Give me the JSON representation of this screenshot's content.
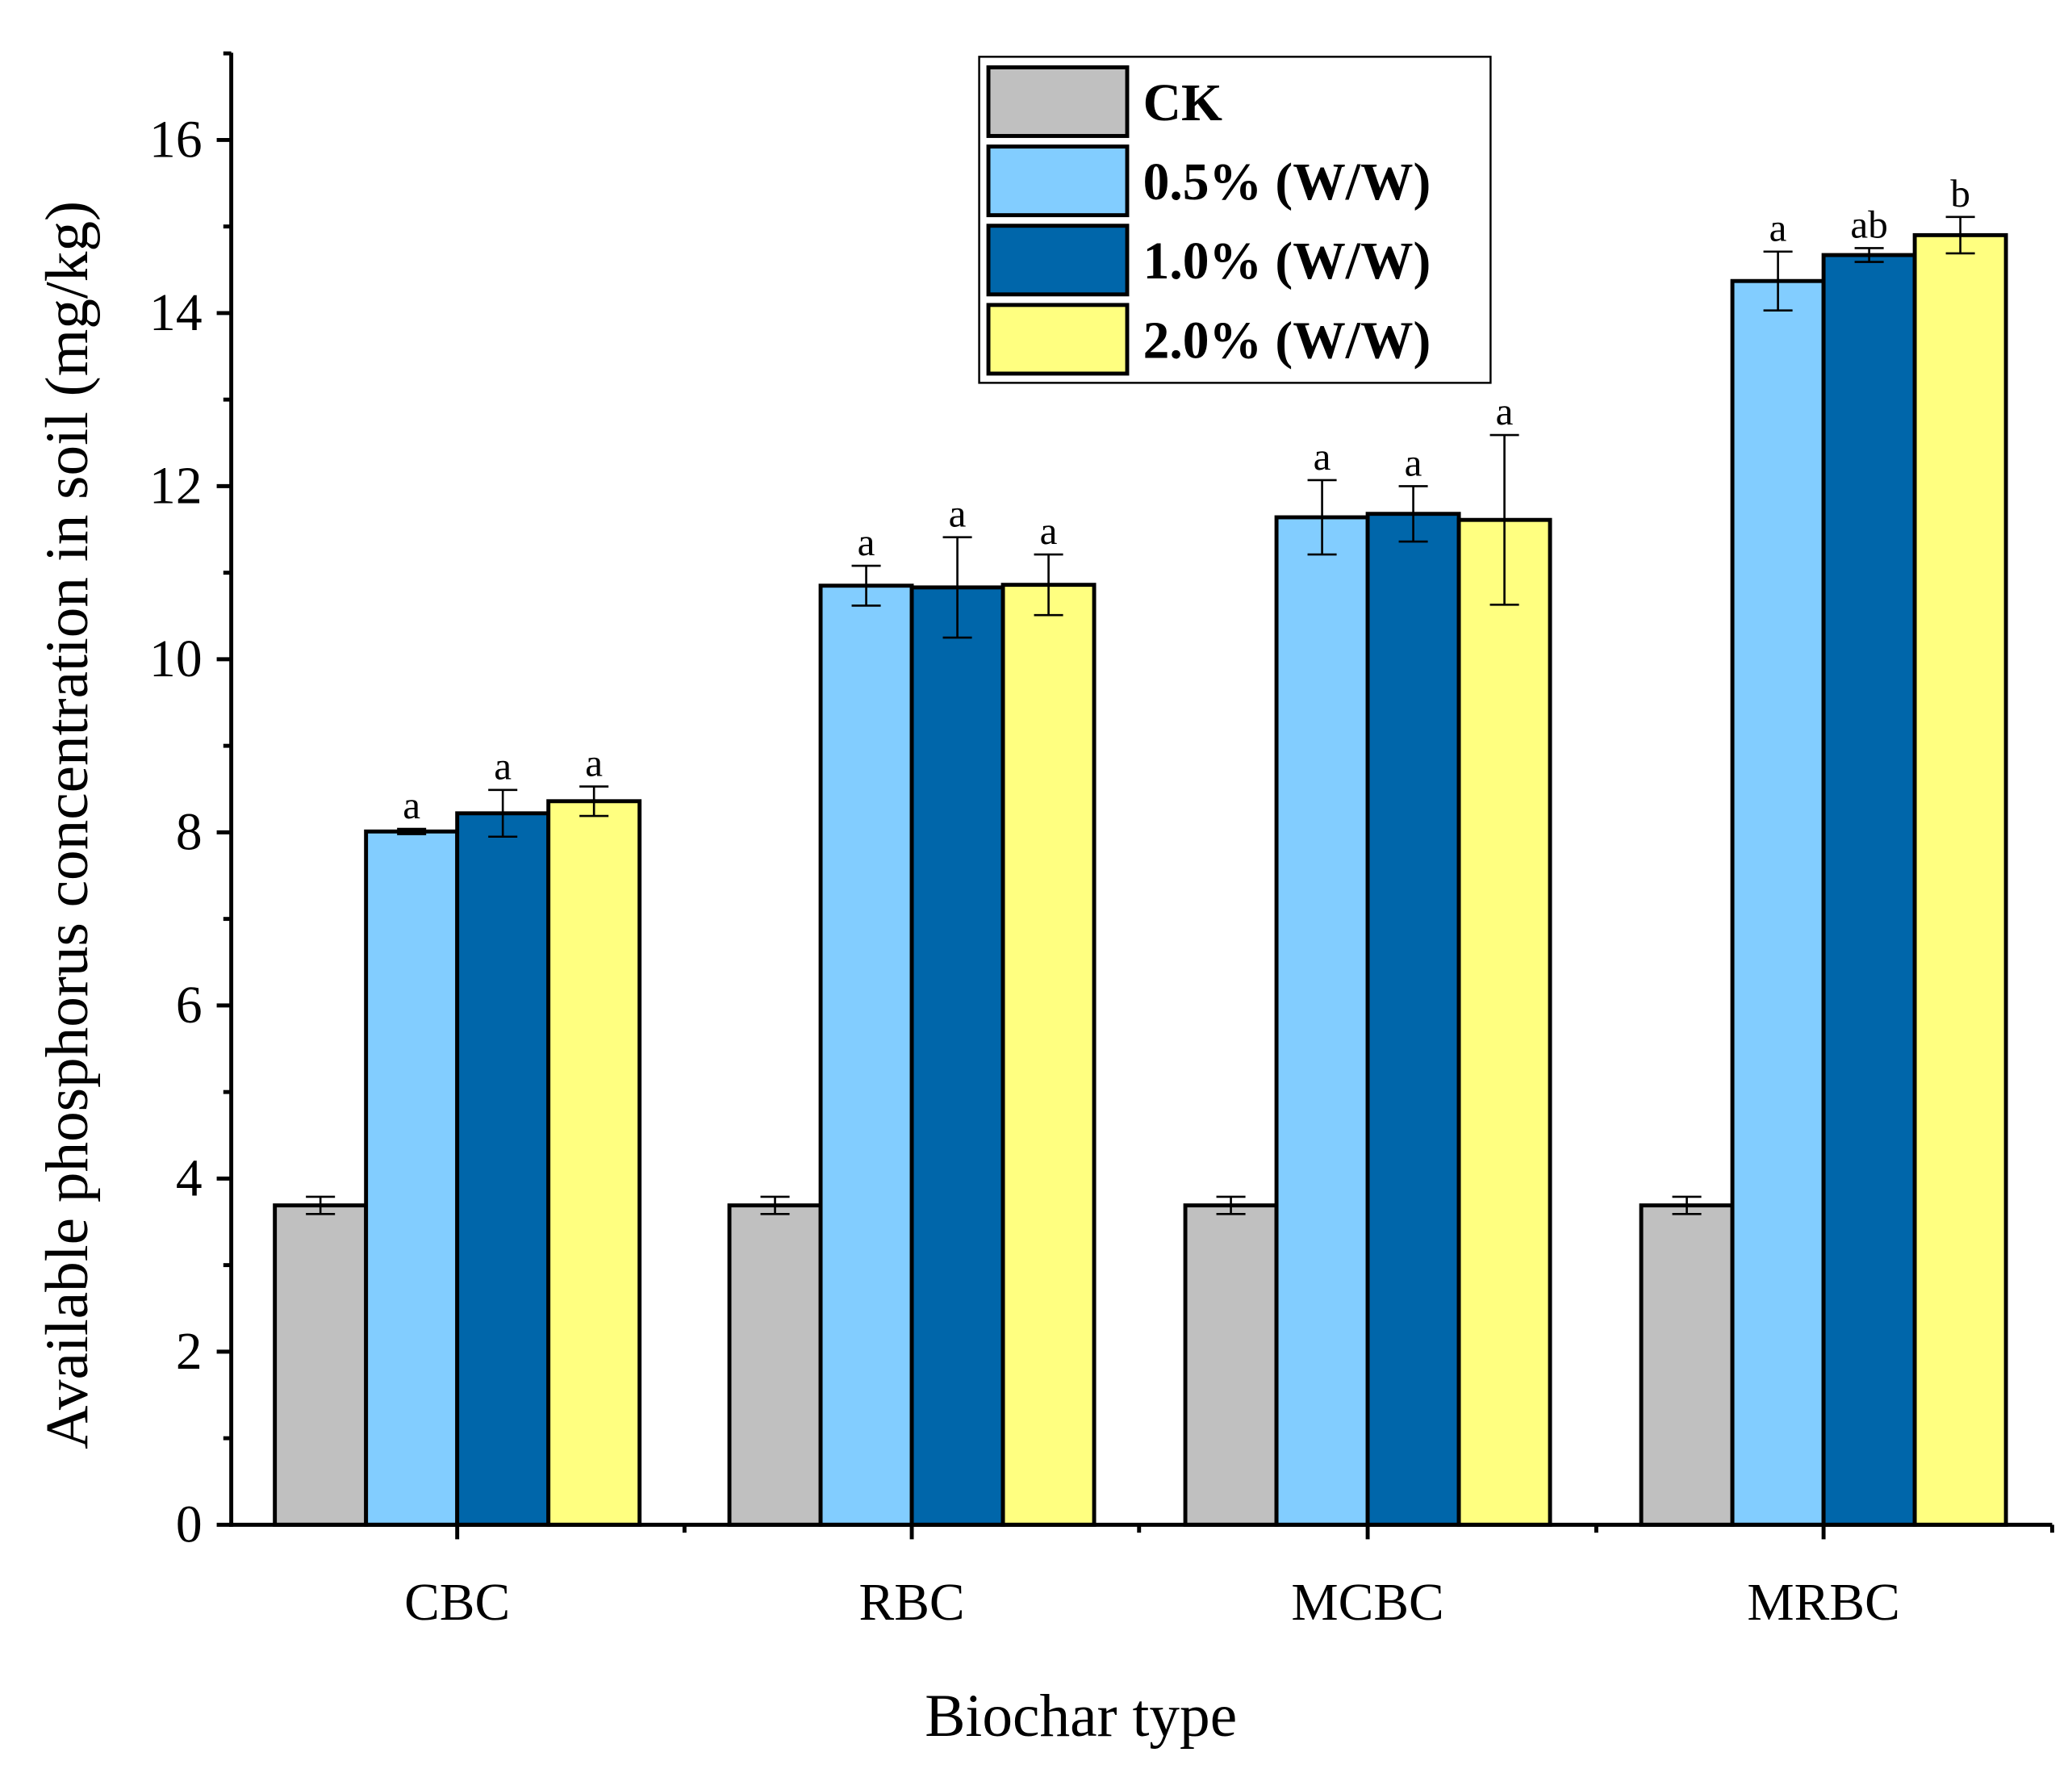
{
  "chart_data": {
    "type": "bar",
    "title": "",
    "xlabel": "Biochar type",
    "ylabel": "Available phosphorus concentration in soil (mg/kg)",
    "ylim": [
      0,
      17
    ],
    "yticks": [
      0,
      2,
      4,
      6,
      8,
      10,
      12,
      14,
      16
    ],
    "categories": [
      "CBC",
      "RBC",
      "MCBC",
      "MRBC"
    ],
    "legend_position": "top-center",
    "series": [
      {
        "name": "CK",
        "color": "#c0c0c0",
        "values": [
          3.69,
          3.69,
          3.69,
          3.69
        ],
        "errors": [
          0.1,
          0.1,
          0.1,
          0.1
        ],
        "letters": [
          "",
          "",
          "",
          ""
        ]
      },
      {
        "name": "0.5% (W/W)",
        "color": "#82cdff",
        "values": [
          8.01,
          10.85,
          11.64,
          14.37
        ],
        "errors": [
          0.03,
          0.23,
          0.43,
          0.34
        ],
        "letters": [
          "a",
          "a",
          "a",
          "a"
        ]
      },
      {
        "name": "1.0% (W/W)",
        "color": "#0066aa",
        "values": [
          8.22,
          10.83,
          11.68,
          14.67
        ],
        "errors": [
          0.27,
          0.58,
          0.32,
          0.08
        ],
        "letters": [
          "a",
          "a",
          "a",
          "ab"
        ]
      },
      {
        "name": "2.0% (W/W)",
        "color": "#ffff80",
        "values": [
          8.36,
          10.86,
          11.61,
          14.9
        ],
        "errors": [
          0.17,
          0.35,
          0.98,
          0.21
        ],
        "letters": [
          "a",
          "a",
          "a",
          "b"
        ]
      }
    ]
  }
}
